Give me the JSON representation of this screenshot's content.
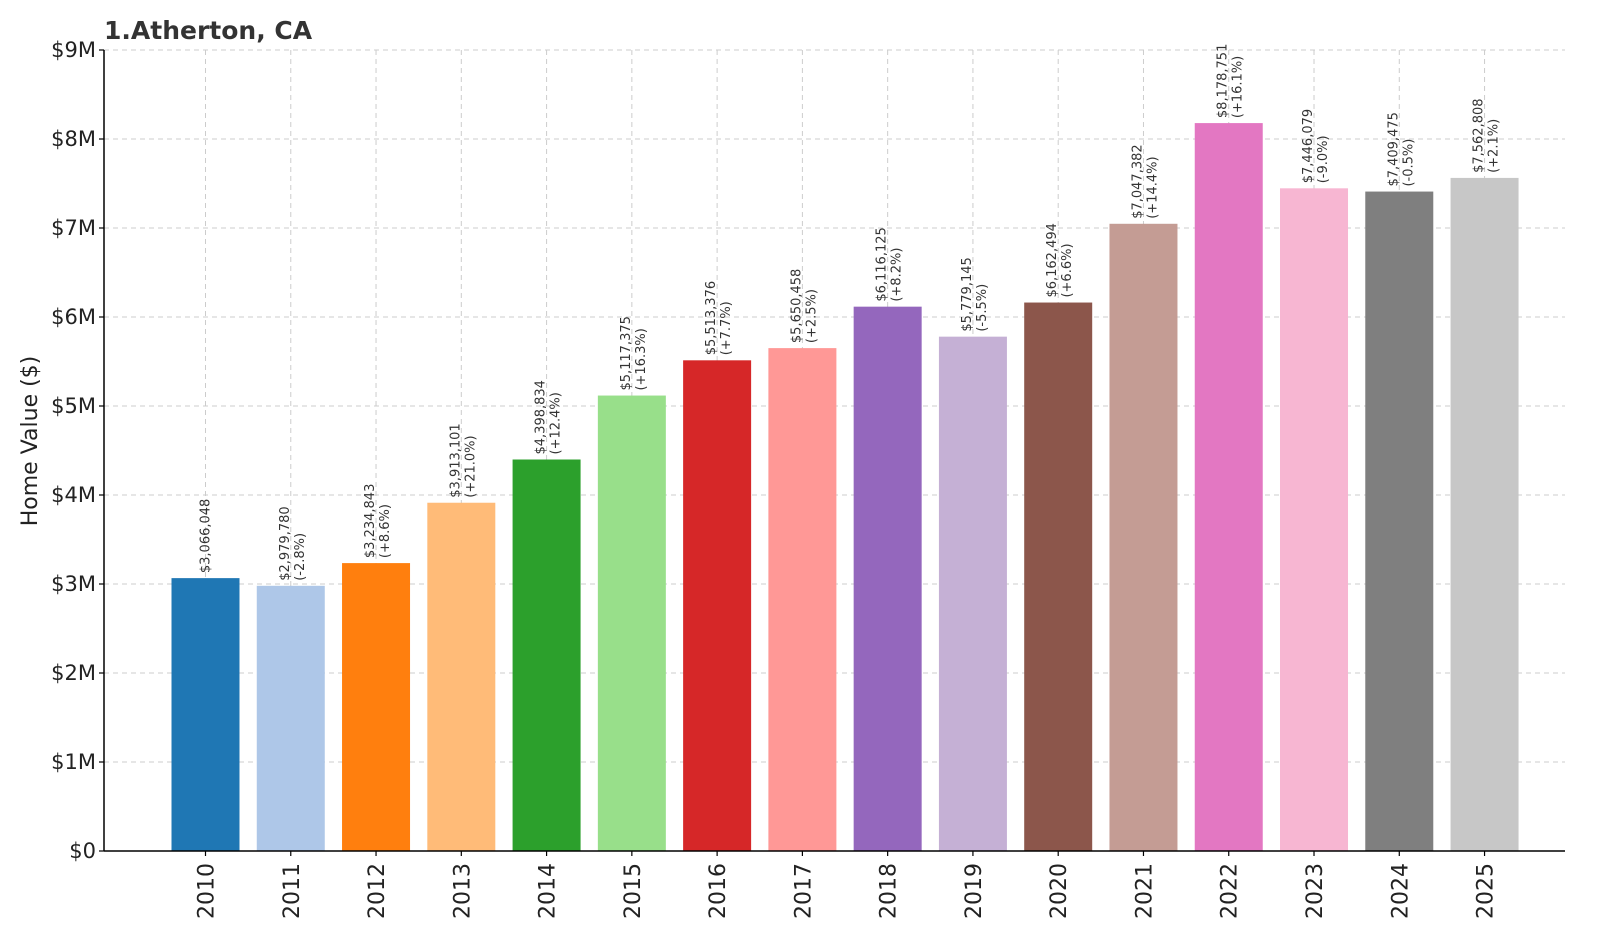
{
  "chart_data": {
    "type": "bar",
    "title": "1.Atherton, CA",
    "xlabel": "",
    "ylabel": "Home Value ($)",
    "ylim": [
      0,
      9000000
    ],
    "yticks": [
      0,
      1000000,
      2000000,
      3000000,
      4000000,
      5000000,
      6000000,
      7000000,
      8000000,
      9000000
    ],
    "ytick_labels": [
      "$0",
      "$1M",
      "$2M",
      "$3M",
      "$4M",
      "$5M",
      "$6M",
      "$7M",
      "$8M",
      "$9M"
    ],
    "grid": true,
    "categories": [
      "2010",
      "2011",
      "2012",
      "2013",
      "2014",
      "2015",
      "2016",
      "2017",
      "2018",
      "2019",
      "2020",
      "2021",
      "2022",
      "2023",
      "2024",
      "2025"
    ],
    "values": [
      3066048,
      2979780,
      3234843,
      3913101,
      4398834,
      5117375,
      5513376,
      5650458,
      6116125,
      5779145,
      6162494,
      7047382,
      8178751,
      7446079,
      7409475,
      7562808
    ],
    "value_labels": [
      "$3,066,048",
      "$2,979,780",
      "$3,234,843",
      "$3,913,101",
      "$4,398,834",
      "$5,117,375",
      "$5,513,376",
      "$5,650,458",
      "$6,116,125",
      "$5,779,145",
      "$6,162,494",
      "$7,047,382",
      "$8,178,751",
      "$7,446,079",
      "$7,409,475",
      "$7,562,808"
    ],
    "change_labels": [
      "",
      "(-2.8%)",
      "(+8.6%)",
      "(+21.0%)",
      "(+12.4%)",
      "(+16.3%)",
      "(+7.7%)",
      "(+2.5%)",
      "(+8.2%)",
      "(-5.5%)",
      "(+6.6%)",
      "(+14.4%)",
      "(+16.1%)",
      "(-9.0%)",
      "(-0.5%)",
      "(+2.1%)"
    ],
    "colors": [
      "#1f77b4",
      "#aec7e8",
      "#ff7f0e",
      "#ffbb78",
      "#2ca02c",
      "#98df8a",
      "#d62728",
      "#ff9896",
      "#9467bd",
      "#c5b0d5",
      "#8c564b",
      "#c49c94",
      "#e377c2",
      "#f7b6d2",
      "#7f7f7f",
      "#c7c7c7"
    ]
  }
}
